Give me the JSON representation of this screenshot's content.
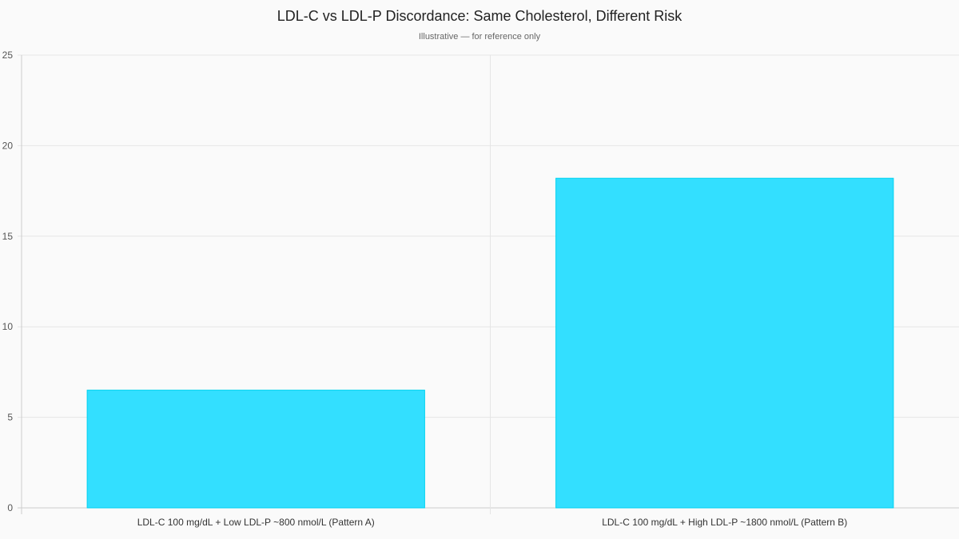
{
  "chart_data": {
    "type": "bar",
    "title": "LDL-C vs LDL-P Discordance: Same Cholesterol, Different Risk",
    "subtitle": "Illustrative — for reference only",
    "categories": [
      "LDL-C 100 mg/dL + Low LDL-P ~800 nmol/L (Pattern A)",
      "LDL-C 100 mg/dL + High LDL-P ~1800 nmol/L (Pattern B)"
    ],
    "values": [
      6.5,
      18.2
    ],
    "xlabel": "",
    "ylabel": "",
    "ylim": [
      0,
      25
    ],
    "yticks": [
      "0",
      "5",
      "10",
      "15",
      "20",
      "25"
    ],
    "grid": true,
    "legend": "none",
    "colors": {
      "bar_fill": "#33dfff",
      "bar_border": "#00d2f0"
    }
  }
}
